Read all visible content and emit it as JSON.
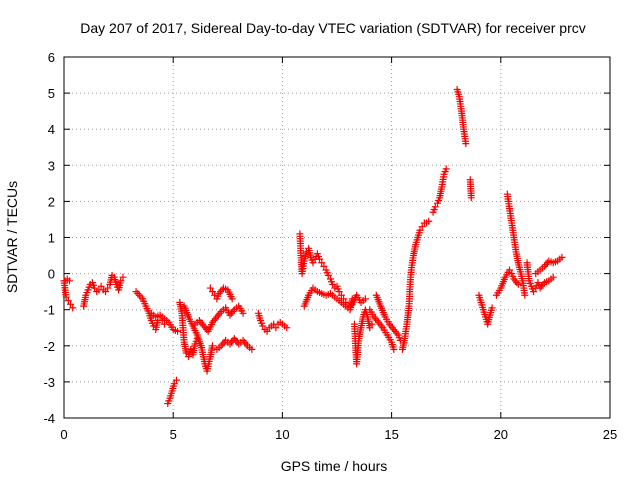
{
  "chart_data": {
    "type": "scatter",
    "title": "Day 207 of 2017, Sidereal Day-to-day VTEC variation (SDTVAR) for receiver prcv",
    "xlabel": "GPS time / hours",
    "ylabel": "SDTVAR / TECUs",
    "xlim": [
      0,
      25
    ],
    "ylim": [
      -4,
      6
    ],
    "xticks": [
      "0",
      "5",
      "10",
      "15",
      "20",
      "25"
    ],
    "yticks": [
      "-4",
      "-3",
      "-2",
      "-1",
      "0",
      "1",
      "2",
      "3",
      "4",
      "5",
      "6"
    ],
    "grid": true,
    "marker": "+",
    "color": "#ff0000",
    "segments": [
      [
        [
          0.0,
          -0.2
        ],
        [
          0.1,
          -0.65
        ],
        [
          0.2,
          -0.75
        ],
        [
          0.3,
          -0.85
        ],
        [
          0.4,
          -0.95
        ]
      ],
      [
        [
          0.05,
          -0.2
        ],
        [
          0.15,
          -0.15
        ],
        [
          0.25,
          -0.2
        ]
      ],
      [
        [
          0.9,
          -0.9
        ],
        [
          1.0,
          -0.6
        ],
        [
          1.1,
          -0.45
        ],
        [
          1.2,
          -0.3
        ],
        [
          1.3,
          -0.25
        ],
        [
          1.4,
          -0.4
        ],
        [
          1.5,
          -0.5
        ],
        [
          1.6,
          -0.45
        ],
        [
          1.7,
          -0.35
        ],
        [
          1.8,
          -0.45
        ],
        [
          1.9,
          -0.5
        ],
        [
          2.0,
          -0.4
        ],
        [
          2.1,
          -0.3
        ],
        [
          2.2,
          -0.05
        ],
        [
          2.3,
          -0.1
        ],
        [
          2.4,
          -0.3
        ],
        [
          2.5,
          -0.45
        ],
        [
          2.6,
          -0.2
        ],
        [
          2.7,
          -0.1
        ]
      ],
      [
        [
          3.3,
          -0.5
        ],
        [
          3.45,
          -0.6
        ],
        [
          3.6,
          -0.7
        ],
        [
          3.75,
          -0.9
        ],
        [
          3.9,
          -1.1
        ],
        [
          4.0,
          -1.3
        ],
        [
          4.1,
          -1.45
        ],
        [
          4.2,
          -1.55
        ],
        [
          4.3,
          -1.3
        ],
        [
          4.4,
          -1.2
        ],
        [
          4.5,
          -1.3
        ],
        [
          4.6,
          -1.4
        ]
      ],
      [
        [
          4.0,
          -1.1
        ],
        [
          4.2,
          -1.2
        ],
        [
          4.4,
          -1.15
        ],
        [
          4.6,
          -1.25
        ],
        [
          4.8,
          -1.35
        ],
        [
          5.0,
          -1.55
        ],
        [
          5.2,
          -1.6
        ]
      ],
      [
        [
          4.75,
          -3.6
        ],
        [
          4.85,
          -3.45
        ],
        [
          4.95,
          -3.25
        ],
        [
          5.05,
          -3.05
        ],
        [
          5.15,
          -2.95
        ]
      ],
      [
        [
          5.3,
          -0.8
        ],
        [
          5.4,
          -1.1
        ],
        [
          5.45,
          -1.5
        ],
        [
          5.5,
          -1.9
        ],
        [
          5.6,
          -2.2
        ],
        [
          5.7,
          -2.3
        ],
        [
          5.8,
          -2.1
        ],
        [
          5.9,
          -2.25
        ],
        [
          6.0,
          -1.95
        ],
        [
          6.1,
          -1.8
        ]
      ],
      [
        [
          5.5,
          -0.9
        ],
        [
          5.7,
          -1.2
        ],
        [
          5.9,
          -1.45
        ],
        [
          6.1,
          -1.7
        ],
        [
          6.3,
          -2.05
        ],
        [
          6.45,
          -2.5
        ],
        [
          6.55,
          -2.7
        ],
        [
          6.7,
          -2.3
        ],
        [
          6.8,
          -2.0
        ]
      ],
      [
        [
          6.0,
          -1.4
        ],
        [
          6.2,
          -1.3
        ],
        [
          6.4,
          -1.45
        ],
        [
          6.6,
          -1.6
        ],
        [
          6.8,
          -1.35
        ],
        [
          7.0,
          -1.2
        ],
        [
          7.2,
          -1.05
        ],
        [
          7.4,
          -0.95
        ],
        [
          7.6,
          -1.15
        ],
        [
          7.8,
          -1.0
        ],
        [
          8.0,
          -0.9
        ],
        [
          8.2,
          -1.1
        ]
      ],
      [
        [
          6.7,
          -0.4
        ],
        [
          6.8,
          -0.5
        ],
        [
          6.9,
          -0.6
        ],
        [
          7.0,
          -0.7
        ],
        [
          7.1,
          -0.55
        ],
        [
          7.3,
          -0.4
        ],
        [
          7.5,
          -0.45
        ],
        [
          7.7,
          -0.7
        ]
      ],
      [
        [
          7.0,
          -2.1
        ],
        [
          7.2,
          -2.0
        ],
        [
          7.4,
          -1.85
        ],
        [
          7.6,
          -1.95
        ],
        [
          7.8,
          -1.8
        ],
        [
          8.0,
          -1.95
        ],
        [
          8.2,
          -1.85
        ],
        [
          8.4,
          -2.0
        ],
        [
          8.6,
          -2.1
        ]
      ],
      [
        [
          8.9,
          -1.1
        ],
        [
          9.0,
          -1.3
        ],
        [
          9.1,
          -1.45
        ],
        [
          9.2,
          -1.55
        ],
        [
          9.3,
          -1.6
        ],
        [
          9.4,
          -1.5
        ],
        [
          9.5,
          -1.45
        ],
        [
          9.6,
          -1.4
        ],
        [
          9.7,
          -1.5
        ],
        [
          9.8,
          -1.4
        ],
        [
          9.9,
          -1.35
        ],
        [
          10.0,
          -1.4
        ],
        [
          10.1,
          -1.45
        ],
        [
          10.2,
          -1.5
        ]
      ],
      [
        [
          10.8,
          1.1
        ],
        [
          10.85,
          0.5
        ],
        [
          10.9,
          0.0
        ],
        [
          11.0,
          0.35
        ],
        [
          11.1,
          0.6
        ],
        [
          11.2,
          0.7
        ],
        [
          11.3,
          0.45
        ],
        [
          11.4,
          0.3
        ],
        [
          11.5,
          0.4
        ],
        [
          11.6,
          0.55
        ],
        [
          11.7,
          0.4
        ],
        [
          11.8,
          0.3
        ],
        [
          11.9,
          0.2
        ],
        [
          12.0,
          0.1
        ],
        [
          12.1,
          -0.05
        ],
        [
          12.2,
          -0.15
        ],
        [
          12.3,
          -0.3
        ],
        [
          12.4,
          -0.4
        ],
        [
          12.5,
          -0.35
        ],
        [
          12.6,
          -0.5
        ],
        [
          12.7,
          -0.6
        ],
        [
          12.8,
          -0.7
        ],
        [
          12.9,
          -0.8
        ],
        [
          13.0,
          -0.9
        ],
        [
          13.1,
          -1.0
        ],
        [
          13.2,
          -0.7
        ]
      ],
      [
        [
          11.0,
          -0.9
        ],
        [
          11.2,
          -0.6
        ],
        [
          11.4,
          -0.4
        ],
        [
          11.6,
          -0.5
        ],
        [
          11.8,
          -0.55
        ],
        [
          12.0,
          -0.6
        ],
        [
          12.2,
          -0.55
        ],
        [
          12.4,
          -0.65
        ],
        [
          12.6,
          -0.75
        ],
        [
          12.8,
          -0.85
        ],
        [
          13.0,
          -0.95
        ],
        [
          13.2,
          -0.85
        ],
        [
          13.4,
          -0.6
        ],
        [
          13.6,
          -0.8
        ],
        [
          13.8,
          -0.7
        ]
      ],
      [
        [
          13.3,
          -1.4
        ],
        [
          13.35,
          -2.0
        ],
        [
          13.4,
          -2.5
        ],
        [
          13.5,
          -1.8
        ],
        [
          13.6,
          -1.5
        ],
        [
          13.7,
          -1.2
        ],
        [
          13.8,
          -1.0
        ],
        [
          13.9,
          -1.2
        ],
        [
          14.0,
          -1.5
        ],
        [
          14.1,
          -1.4
        ]
      ],
      [
        [
          14.0,
          -1.0
        ],
        [
          14.2,
          -1.2
        ],
        [
          14.4,
          -1.35
        ],
        [
          14.6,
          -1.5
        ],
        [
          14.8,
          -1.7
        ],
        [
          15.0,
          -1.9
        ],
        [
          15.1,
          -2.1
        ]
      ],
      [
        [
          14.3,
          -0.6
        ],
        [
          14.5,
          -0.9
        ],
        [
          14.7,
          -1.2
        ],
        [
          14.9,
          -1.4
        ],
        [
          15.1,
          -1.55
        ],
        [
          15.3,
          -1.7
        ],
        [
          15.4,
          -1.85
        ]
      ],
      [
        [
          15.5,
          -2.1
        ],
        [
          15.6,
          -1.8
        ],
        [
          15.7,
          -1.4
        ],
        [
          15.8,
          -0.9
        ],
        [
          15.85,
          -0.3
        ],
        [
          15.9,
          0.1
        ],
        [
          16.0,
          0.5
        ],
        [
          16.1,
          0.8
        ],
        [
          16.2,
          1.0
        ],
        [
          16.3,
          1.2
        ],
        [
          16.4,
          1.3
        ],
        [
          16.5,
          1.4
        ],
        [
          16.6,
          1.4
        ],
        [
          16.7,
          1.45
        ]
      ],
      [
        [
          16.9,
          1.7
        ],
        [
          17.0,
          1.85
        ],
        [
          17.1,
          1.95
        ],
        [
          17.2,
          2.1
        ],
        [
          17.3,
          2.4
        ],
        [
          17.4,
          2.75
        ],
        [
          17.5,
          2.9
        ]
      ],
      [
        [
          18.0,
          5.1
        ],
        [
          18.1,
          4.9
        ],
        [
          18.2,
          4.5
        ],
        [
          18.3,
          4.0
        ],
        [
          18.4,
          3.6
        ]
      ],
      [
        [
          18.6,
          2.6
        ],
        [
          18.65,
          2.1
        ]
      ],
      [
        [
          19.0,
          -0.6
        ],
        [
          19.1,
          -0.8
        ],
        [
          19.2,
          -1.0
        ],
        [
          19.3,
          -1.2
        ],
        [
          19.4,
          -1.4
        ],
        [
          19.5,
          -1.15
        ],
        [
          19.6,
          -0.95
        ]
      ],
      [
        [
          19.8,
          -0.6
        ],
        [
          20.0,
          -0.4
        ],
        [
          20.2,
          -0.1
        ],
        [
          20.4,
          0.1
        ],
        [
          20.5,
          0.0
        ],
        [
          20.6,
          -0.15
        ],
        [
          20.8,
          -0.3
        ]
      ],
      [
        [
          20.3,
          2.2
        ],
        [
          20.4,
          1.8
        ],
        [
          20.5,
          1.4
        ],
        [
          20.6,
          1.0
        ],
        [
          20.7,
          0.6
        ],
        [
          20.8,
          0.3
        ],
        [
          20.9,
          0.05
        ],
        [
          21.0,
          -0.2
        ],
        [
          21.1,
          -0.6
        ]
      ],
      [
        [
          21.2,
          0.3
        ],
        [
          21.3,
          -0.2
        ],
        [
          21.4,
          -0.35
        ],
        [
          21.5,
          -0.5
        ],
        [
          21.6,
          -0.4
        ],
        [
          21.7,
          -0.25
        ],
        [
          21.8,
          -0.4
        ],
        [
          22.0,
          -0.25
        ],
        [
          22.2,
          -0.2
        ],
        [
          22.4,
          -0.1
        ]
      ],
      [
        [
          21.6,
          0.0
        ],
        [
          21.8,
          0.1
        ],
        [
          22.0,
          0.2
        ],
        [
          22.2,
          0.35
        ],
        [
          22.4,
          0.3
        ],
        [
          22.6,
          0.35
        ],
        [
          22.8,
          0.45
        ]
      ]
    ]
  }
}
